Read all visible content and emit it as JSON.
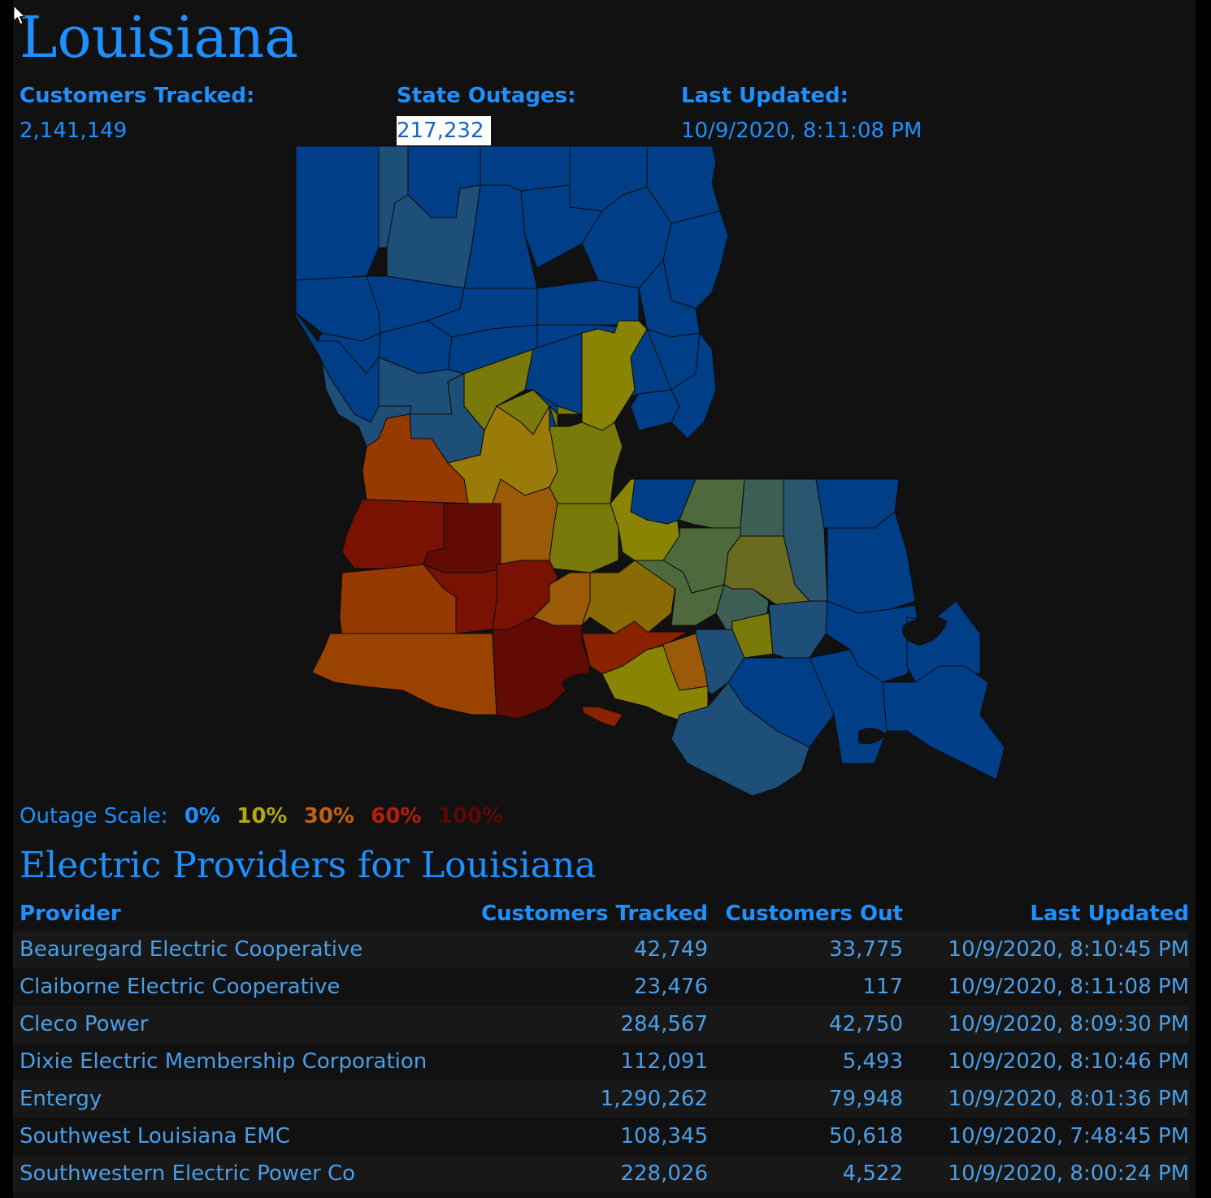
{
  "state_name": "Louisiana",
  "summary": {
    "customers_tracked_label": "Customers Tracked:",
    "customers_tracked_value": "2,141,149",
    "state_outages_label": "State Outages:",
    "state_outages_value": "217,232",
    "last_updated_label": "Last Updated:",
    "last_updated_value": "10/9/2020, 8:11:08 PM"
  },
  "scale": {
    "label": "Outage Scale:",
    "steps": [
      {
        "label": "0%",
        "color": "#1e90ff"
      },
      {
        "label": "10%",
        "color": "#b5a80a"
      },
      {
        "label": "30%",
        "color": "#c4600e"
      },
      {
        "label": "60%",
        "color": "#b41e0a"
      },
      {
        "label": "100%",
        "color": "#5a0a06"
      }
    ]
  },
  "providers_section": {
    "title": "Electric Providers for Louisiana",
    "columns": [
      "Provider",
      "Customers Tracked",
      "Customers Out",
      "Last Updated"
    ],
    "rows": [
      {
        "provider": "Beauregard Electric Cooperative",
        "tracked": "42,749",
        "out": "33,775",
        "updated": "10/9/2020, 8:10:45 PM"
      },
      {
        "provider": "Claiborne Electric Cooperative",
        "tracked": "23,476",
        "out": "117",
        "updated": "10/9/2020, 8:11:08 PM"
      },
      {
        "provider": "Cleco Power",
        "tracked": "284,567",
        "out": "42,750",
        "updated": "10/9/2020, 8:09:30 PM"
      },
      {
        "provider": "Dixie Electric Membership Corporation",
        "tracked": "112,091",
        "out": "5,493",
        "updated": "10/9/2020, 8:10:46 PM"
      },
      {
        "provider": "Entergy",
        "tracked": "1,290,262",
        "out": "79,948",
        "updated": "10/9/2020, 8:01:36 PM"
      },
      {
        "provider": "Southwest Louisiana EMC",
        "tracked": "108,345",
        "out": "50,618",
        "updated": "10/9/2020, 7:48:45 PM"
      },
      {
        "provider": "Southwestern Electric Power Co",
        "tracked": "228,026",
        "out": "4,522",
        "updated": "10/9/2020, 8:00:24 PM"
      }
    ]
  },
  "map_colors": {
    "blue": "#003f87",
    "teal": "#1d4f78",
    "slate": "#2a5670",
    "olive_green": "#4e6a3c",
    "green_gray": "#3d5f55",
    "olive": "#7a7a0a",
    "yellow_olive": "#8a8405",
    "mustard": "#9a7a08",
    "orange": "#9a5a08",
    "dark_orange": "#963a02",
    "red_orange": "#8a2200",
    "red": "#7a1204",
    "dark_red": "#620b04",
    "border": "#0b0b0b"
  }
}
